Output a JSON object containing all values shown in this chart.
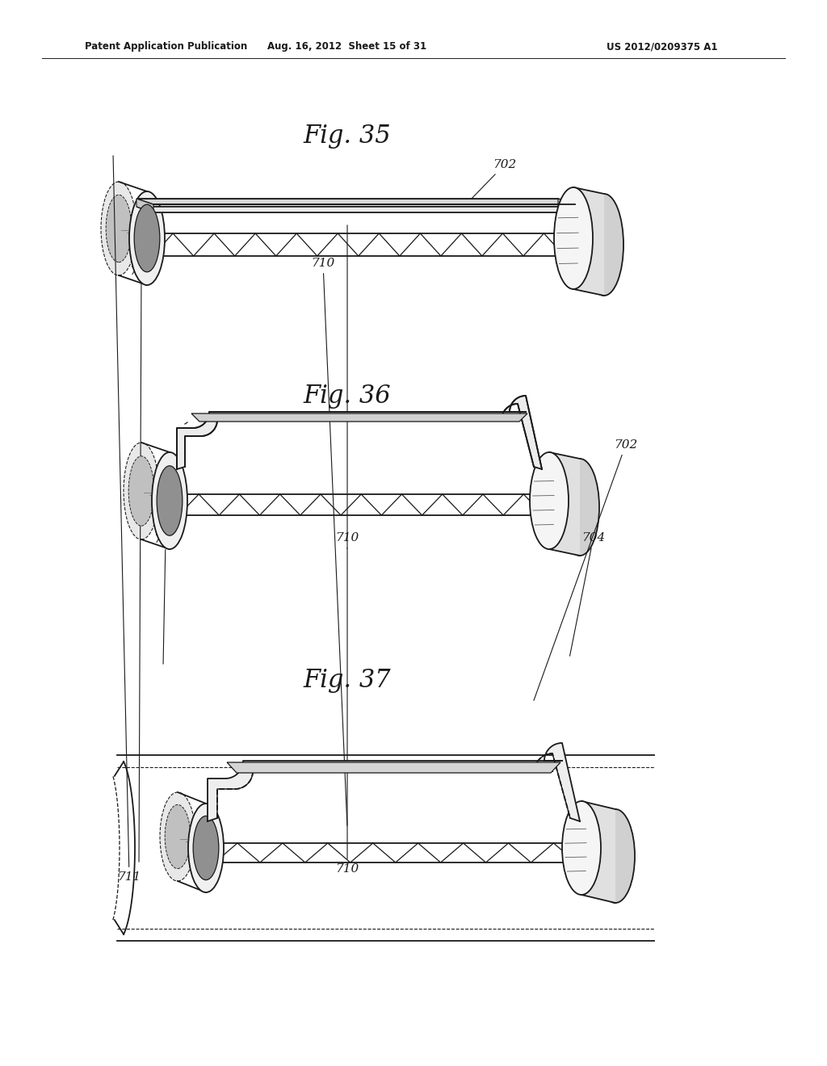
{
  "header_left": "Patent Application Publication",
  "header_mid": "Aug. 16, 2012  Sheet 15 of 31",
  "header_right": "US 2012/0209375 A1",
  "fig35_title": "Fig. 35",
  "fig36_title": "Fig. 36",
  "fig37_title": "Fig. 37",
  "bg_color": "#ffffff",
  "line_color": "#1a1a1a"
}
